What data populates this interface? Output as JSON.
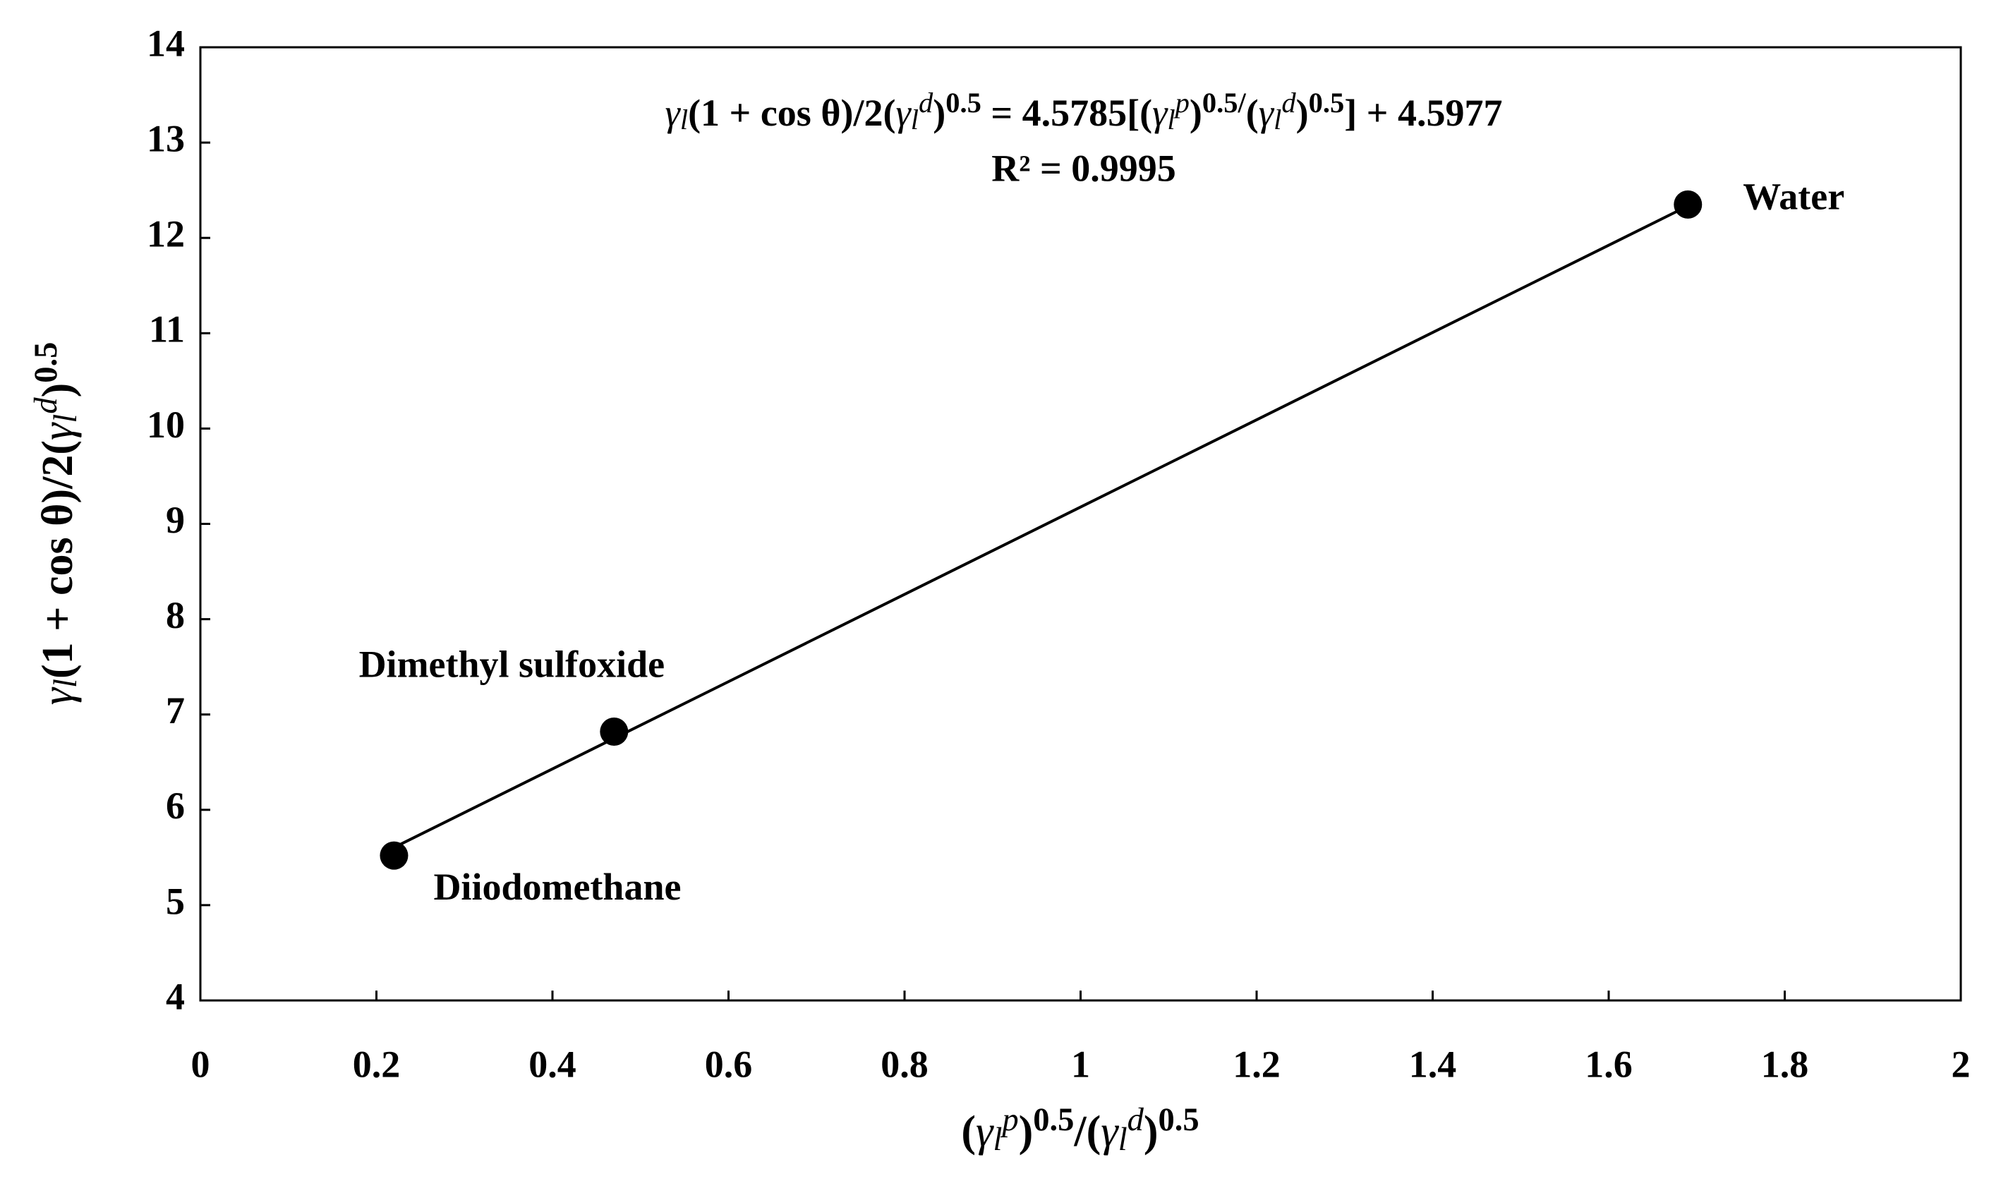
{
  "chart_data": {
    "type": "scatter",
    "equation": [
      {
        "text": "γ",
        "style": "italic"
      },
      {
        "text": "l",
        "style": "italic-sub"
      },
      {
        "text": "(1 + cos θ)/2(",
        "style": "normal"
      },
      {
        "text": "γ",
        "style": "italic"
      },
      {
        "text": "l",
        "style": "italic-sub"
      },
      {
        "text": "d",
        "style": "italic-sup"
      },
      {
        "text": ")",
        "style": "normal"
      },
      {
        "text": "0.5",
        "style": "sup"
      },
      {
        "text": " = 4.5785[(",
        "style": "normal"
      },
      {
        "text": "γ",
        "style": "italic"
      },
      {
        "text": "l",
        "style": "italic-sub"
      },
      {
        "text": "p",
        "style": "italic-sup"
      },
      {
        "text": ")",
        "style": "normal"
      },
      {
        "text": "0.5/",
        "style": "sup"
      },
      {
        "text": "(",
        "style": "normal"
      },
      {
        "text": "γ",
        "style": "italic"
      },
      {
        "text": "l",
        "style": "italic-sub"
      },
      {
        "text": "d",
        "style": "italic-sup"
      },
      {
        "text": ")",
        "style": "normal"
      },
      {
        "text": "0.5",
        "style": "sup"
      },
      {
        "text": "] + 4.5977",
        "style": "normal"
      }
    ],
    "r_squared_label": "R² = 0.9995",
    "trendline": {
      "slope": 4.5785,
      "intercept": 4.5977
    },
    "x_label": [
      {
        "text": "(",
        "style": "normal"
      },
      {
        "text": "γ",
        "style": "italic"
      },
      {
        "text": "l",
        "style": "italic-sub"
      },
      {
        "text": "p",
        "style": "italic-sup"
      },
      {
        "text": ")",
        "style": "normal"
      },
      {
        "text": "0.5",
        "style": "sup"
      },
      {
        "text": "/(",
        "style": "normal"
      },
      {
        "text": "γ",
        "style": "italic"
      },
      {
        "text": "l",
        "style": "italic-sub"
      },
      {
        "text": "d",
        "style": "italic-sup"
      },
      {
        "text": ")",
        "style": "normal"
      },
      {
        "text": "0.5",
        "style": "sup"
      }
    ],
    "y_label": [
      {
        "text": "γ",
        "style": "italic"
      },
      {
        "text": "l",
        "style": "italic-sub"
      },
      {
        "text": "(1 + cos θ)/2(",
        "style": "normal"
      },
      {
        "text": "γ",
        "style": "italic"
      },
      {
        "text": "l",
        "style": "italic-sub"
      },
      {
        "text": "d",
        "style": "italic-sup"
      },
      {
        "text": ")",
        "style": "normal"
      },
      {
        "text": "0.5",
        "style": "sup"
      }
    ],
    "point_labels": [
      "Diiodomethane",
      "Dimethyl sulfoxide",
      "Water"
    ],
    "x": [
      0.22,
      0.47,
      1.69
    ],
    "values": [
      5.52,
      6.82,
      12.35
    ],
    "color": "#000000",
    "xlim": [
      0,
      2
    ],
    "xticks": [
      0,
      0.2,
      0.4,
      0.6,
      0.8,
      1,
      1.2,
      1.4,
      1.6,
      1.8,
      2
    ],
    "ylim": [
      4,
      14
    ],
    "yticks": [
      4,
      5,
      6,
      7,
      8,
      9,
      10,
      11,
      12,
      13,
      14
    ],
    "grid": false
  }
}
